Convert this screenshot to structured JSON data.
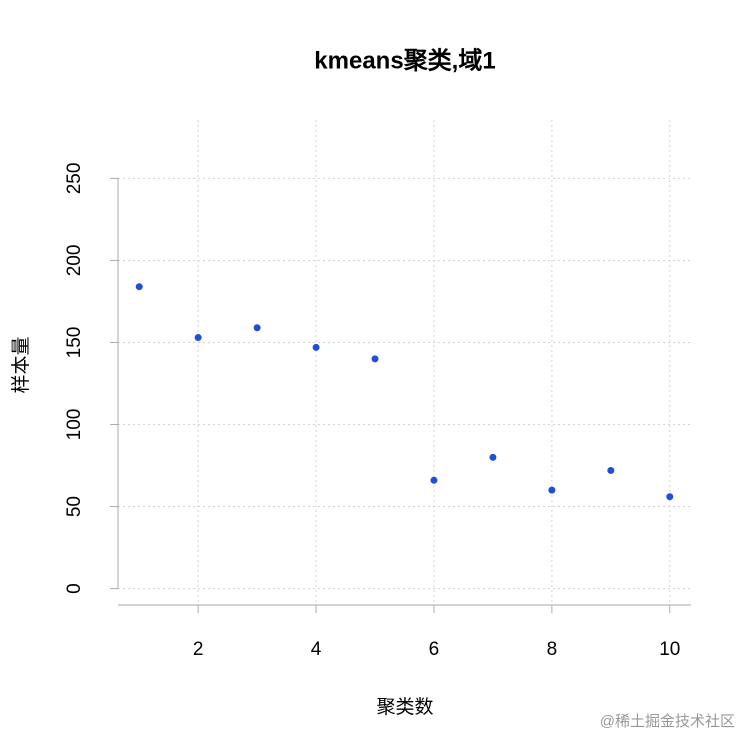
{
  "chart_data": {
    "type": "scatter",
    "title": "kmeans聚类,域1",
    "x_label": "聚类数",
    "y_label": "样本量",
    "x": [
      1,
      2,
      3,
      4,
      5,
      6,
      7,
      8,
      9,
      10
    ],
    "series": [
      {
        "color": "#1f4fd8",
        "values": [
          184,
          153,
          159,
          147,
          140,
          66,
          80,
          60,
          72,
          56
        ]
      }
    ],
    "xlim": [
      0.64,
      10.36
    ],
    "xticks": [
      2,
      4,
      6,
      8,
      10
    ],
    "ylim": [
      -10,
      260
    ],
    "yticks": [
      0,
      50,
      100,
      150,
      200,
      250
    ],
    "grid": true
  },
  "watermark": "@稀土掘金技术社区"
}
